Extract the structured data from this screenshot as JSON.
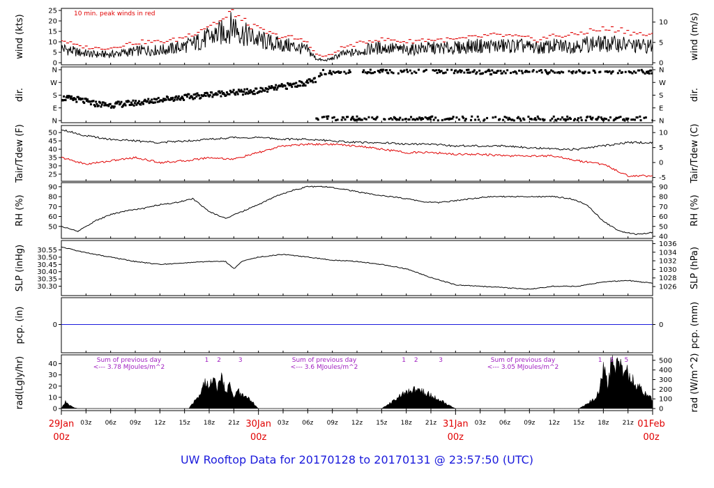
{
  "title": "UW Rooftop Data for 20170128  to  20170131 @ 23:57:50  (UTC)",
  "colors": {
    "title": "#1a1adc",
    "day_labels": "#e00000",
    "peak_wind": "#e00000",
    "dewpoint": "#e00000",
    "annotation": "#a020c0",
    "precip_line": "#1a1adc",
    "data": "#000000"
  },
  "time_axis": {
    "hour_labels": [
      "03z",
      "06z",
      "09z",
      "12z",
      "15z",
      "18z",
      "21z",
      "03z",
      "06z",
      "09z",
      "12z",
      "15z",
      "18z",
      "21z",
      "03z",
      "06z",
      "09z",
      "12z",
      "15z",
      "18z",
      "21z"
    ],
    "hour_values": [
      3,
      6,
      9,
      12,
      15,
      18,
      21,
      27,
      30,
      33,
      36,
      39,
      42,
      45,
      51,
      54,
      57,
      60,
      63,
      66,
      69
    ],
    "day_labels": [
      {
        "day": "29Jan",
        "hour": "00z",
        "t": 0
      },
      {
        "day": "30Jan",
        "hour": "00z",
        "t": 24
      },
      {
        "day": "31Jan",
        "hour": "00z",
        "t": 48
      },
      {
        "day": "01Feb",
        "hour": "00z",
        "t": 72
      }
    ],
    "range_hours": [
      0,
      72
    ]
  },
  "chart_data": [
    {
      "type": "line",
      "panel": "wind",
      "ylabel_left": "wind (kts)",
      "ylabel_right": "wind (m/s)",
      "annotation": "10 min. peak winds in red",
      "ylim": [
        0,
        25
      ],
      "yticks_left": [
        0,
        5,
        10,
        15,
        20,
        25
      ],
      "yticks_right": [
        0,
        5,
        10
      ],
      "series": [
        {
          "x": [
            0,
            2,
            4,
            6,
            8,
            10,
            12,
            14,
            16,
            18,
            20,
            21,
            22,
            24,
            26,
            28,
            30,
            31,
            32,
            33,
            34,
            36,
            38,
            40,
            42,
            44,
            46,
            48,
            50,
            52,
            54,
            56,
            58,
            60,
            62,
            64,
            66,
            68,
            70,
            72
          ],
          "values": [
            7,
            5,
            4,
            4,
            5,
            6,
            6,
            7,
            9,
            12,
            15,
            18,
            14,
            11,
            9,
            8,
            6,
            2,
            1,
            2,
            4,
            5,
            7,
            7,
            6,
            7,
            7,
            7,
            8,
            8,
            8,
            8,
            7,
            8,
            8,
            9,
            9,
            9,
            8,
            8
          ]
        },
        {
          "name": "10 min. peak winds",
          "x": [
            0,
            2,
            4,
            6,
            8,
            10,
            12,
            14,
            16,
            18,
            20,
            21,
            22,
            24,
            26,
            28,
            30,
            31,
            32,
            33,
            34,
            36,
            38,
            40,
            42,
            44,
            46,
            48,
            50,
            52,
            54,
            56,
            58,
            60,
            62,
            64,
            66,
            68,
            70,
            72
          ],
          "values": [
            11,
            8,
            7,
            7,
            9,
            10,
            10,
            11,
            14,
            18,
            21,
            25,
            20,
            16,
            13,
            12,
            10,
            4,
            3,
            4,
            7,
            9,
            11,
            11,
            10,
            11,
            11,
            11,
            12,
            13,
            13,
            12,
            11,
            13,
            13,
            15,
            16,
            16,
            14,
            13
          ]
        }
      ]
    },
    {
      "type": "scatter",
      "panel": "direction",
      "ylabel_left": "dir.",
      "ylabel_right": "dir.",
      "yticks_left": [
        "N",
        "E",
        "S",
        "W",
        "N"
      ],
      "yticks_right": [
        "N",
        "E",
        "S",
        "W",
        "N"
      ],
      "ylim": [
        0,
        360
      ],
      "series": [
        {
          "x": [
            0,
            2,
            4,
            6,
            8,
            10,
            12,
            14,
            16,
            18,
            20,
            22,
            24,
            26,
            28,
            30,
            31,
            32,
            34,
            36,
            38,
            40,
            42,
            44,
            46,
            48,
            50,
            52,
            54,
            56,
            58,
            60,
            62,
            64,
            66,
            68,
            70,
            72
          ],
          "values": [
            160,
            150,
            120,
            110,
            120,
            130,
            150,
            160,
            170,
            185,
            195,
            200,
            210,
            230,
            250,
            270,
            290,
            345,
            350,
            355,
            355,
            355,
            350,
            355,
            355,
            355,
            350,
            345,
            350,
            350,
            350,
            350,
            350,
            355,
            355,
            350,
            350,
            345
          ]
        }
      ]
    },
    {
      "type": "line",
      "panel": "temperature",
      "ylabel_left": "Tair/Tdew (F)",
      "ylabel_right": "Tair/Tdew (C)",
      "ylim": [
        22,
        53
      ],
      "yticks_left": [
        25,
        30,
        35,
        40,
        45,
        50
      ],
      "yticks_right": [
        -5,
        0,
        5,
        10
      ],
      "series": [
        {
          "name": "Tair",
          "x": [
            0,
            3,
            6,
            9,
            12,
            15,
            18,
            21,
            24,
            27,
            30,
            33,
            36,
            39,
            42,
            45,
            48,
            51,
            54,
            57,
            60,
            63,
            66,
            69,
            72
          ],
          "values": [
            52,
            48,
            46,
            45,
            44,
            45,
            46,
            47,
            47,
            46,
            46,
            45,
            44,
            44,
            43,
            43,
            42,
            42,
            42,
            41,
            40,
            40,
            42,
            44,
            44
          ]
        },
        {
          "name": "Tdew",
          "x": [
            0,
            3,
            6,
            9,
            12,
            15,
            18,
            21,
            24,
            27,
            30,
            33,
            36,
            39,
            42,
            45,
            48,
            51,
            54,
            57,
            60,
            63,
            66,
            69,
            72
          ],
          "values": [
            35,
            31,
            33,
            35,
            32,
            33,
            35,
            34,
            38,
            42,
            43,
            43,
            42,
            40,
            38,
            38,
            37,
            37,
            36,
            36,
            36,
            33,
            31,
            24,
            24
          ]
        }
      ]
    },
    {
      "type": "line",
      "panel": "rh",
      "ylabel_left": "RH (%)",
      "ylabel_right": "RH (%)",
      "ylim": [
        40,
        92
      ],
      "yticks_left": [
        50,
        60,
        70,
        80,
        90
      ],
      "yticks_right": [
        40,
        50,
        60,
        70,
        80,
        90
      ],
      "series": [
        {
          "x": [
            0,
            2,
            4,
            6,
            8,
            10,
            12,
            14,
            16,
            18,
            20,
            22,
            24,
            26,
            28,
            30,
            32,
            34,
            36,
            38,
            40,
            42,
            44,
            46,
            48,
            50,
            52,
            54,
            56,
            58,
            60,
            62,
            64,
            66,
            68,
            70,
            72
          ],
          "values": [
            50,
            45,
            55,
            62,
            66,
            68,
            72,
            74,
            78,
            65,
            58,
            65,
            72,
            80,
            86,
            90,
            90,
            88,
            85,
            82,
            80,
            78,
            75,
            74,
            76,
            78,
            80,
            80,
            80,
            80,
            80,
            78,
            72,
            55,
            45,
            42,
            44
          ]
        }
      ]
    },
    {
      "type": "line",
      "panel": "pressure",
      "ylabel_left": "SLP (inHg)",
      "ylabel_right": "SLP (hPa)",
      "ylim": [
        30.25,
        30.6
      ],
      "yticks_left": [
        30.3,
        30.35,
        30.4,
        30.45,
        30.5,
        30.55
      ],
      "yticks_left_labels": [
        "30.30",
        "30.35",
        "30.40",
        "30.45",
        "30.50",
        "30.55"
      ],
      "yticks_right": [
        1026,
        1028,
        1030,
        1032,
        1034,
        1036
      ],
      "series": [
        {
          "x": [
            0,
            3,
            6,
            9,
            12,
            15,
            18,
            20,
            21,
            22,
            24,
            27,
            30,
            33,
            36,
            39,
            42,
            45,
            48,
            51,
            54,
            57,
            60,
            63,
            66,
            69,
            72
          ],
          "values": [
            30.57,
            30.53,
            30.5,
            30.47,
            30.45,
            30.46,
            30.47,
            30.47,
            30.42,
            30.47,
            30.5,
            30.52,
            30.5,
            30.48,
            30.47,
            30.45,
            30.42,
            30.36,
            30.31,
            30.3,
            30.29,
            30.28,
            30.3,
            30.3,
            30.33,
            30.34,
            30.32
          ]
        }
      ]
    },
    {
      "type": "line",
      "panel": "precip",
      "ylabel_left": "pcp. (in)",
      "ylabel_right": "pcp. (mm)",
      "yticks_left": [
        0
      ],
      "yticks_right": [
        0
      ],
      "series": [
        {
          "x": [
            0,
            72
          ],
          "values": [
            0,
            0
          ]
        }
      ]
    },
    {
      "type": "area",
      "panel": "radiation",
      "ylabel_left": "rad(Lgly/hr)",
      "ylabel_right": "rad (W/m^2)",
      "ylim": [
        0,
        46
      ],
      "yticks_left": [
        0,
        10,
        20,
        30,
        40
      ],
      "yticks_right": [
        0,
        100,
        200,
        300,
        400,
        500
      ],
      "annotations": [
        {
          "text": "Sum of previous day",
          "line2": "<--- 3.78 MJoules/m^2"
        },
        {
          "text": "Sum of previous day",
          "line2": "<--- 3.6 MJoules/m^2"
        },
        {
          "text": "Sum of previous day",
          "line2": "<--- 3.05 MJoules/m^2"
        }
      ],
      "markers": [
        {
          "label": "1",
          "t": 17.7
        },
        {
          "label": "2",
          "t": 19.2
        },
        {
          "label": "3",
          "t": 21.8
        },
        {
          "label": "1",
          "t": 41.7
        },
        {
          "label": "2",
          "t": 43.2
        },
        {
          "label": "3",
          "t": 46.2
        },
        {
          "label": "1",
          "t": 65.6
        },
        {
          "label": "3",
          "t": 67.0
        },
        {
          "label": "5",
          "t": 68.8
        }
      ],
      "series": [
        {
          "x": [
            0,
            0.5,
            1,
            1.5,
            2,
            15.5,
            16,
            17,
            17.5,
            18,
            18.5,
            19,
            19.5,
            20,
            20.5,
            21,
            21.5,
            22,
            22.5,
            23,
            23.5,
            24,
            39,
            40,
            41,
            42,
            43,
            44,
            45,
            46,
            47,
            48,
            63,
            64,
            65,
            65.5,
            66,
            66.5,
            67,
            67.5,
            68,
            69,
            70,
            71,
            72
          ],
          "values": [
            0,
            6,
            3,
            1,
            0,
            0,
            5,
            15,
            26,
            20,
            28,
            18,
            30,
            14,
            22,
            10,
            16,
            12,
            10,
            8,
            4,
            0,
            0,
            5,
            10,
            15,
            18,
            16,
            12,
            8,
            4,
            0,
            0,
            4,
            10,
            16,
            38,
            22,
            42,
            40,
            38,
            32,
            22,
            14,
            8
          ]
        }
      ]
    }
  ]
}
